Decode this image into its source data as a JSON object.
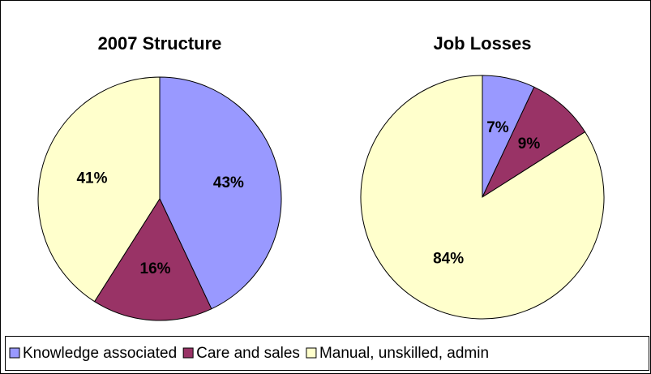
{
  "chart_data": [
    {
      "type": "pie",
      "title": "2007 Structure",
      "categories": [
        "Knowledge associated",
        "Care and sales",
        "Manual, unskilled, admin"
      ],
      "values": [
        43,
        16,
        41
      ],
      "value_labels": [
        "43%",
        "16%",
        "41%"
      ],
      "colors": [
        "#9999ff",
        "#993366",
        "#ffffcc"
      ]
    },
    {
      "type": "pie",
      "title": "Job Losses",
      "values": [
        7,
        9,
        84
      ],
      "value_labels": [
        "7%",
        "9%",
        "84%"
      ],
      "colors": [
        "#9999ff",
        "#993366",
        "#ffffcc"
      ]
    }
  ]
}
